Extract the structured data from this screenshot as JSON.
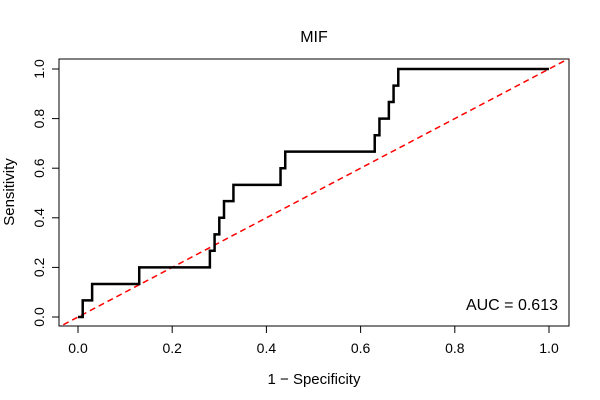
{
  "chart_data": {
    "type": "line",
    "title": "MIF",
    "xlabel": "1 − Specificity",
    "ylabel": "Sensitivity",
    "xlim": [
      0,
      1
    ],
    "ylim": [
      0,
      1
    ],
    "xticks": [
      "0.0",
      "0.2",
      "0.4",
      "0.6",
      "0.8",
      "1.0"
    ],
    "yticks": [
      "0.0",
      "0.2",
      "0.4",
      "0.6",
      "0.8",
      "1.0"
    ],
    "annotation": "AUC = 0.613",
    "grid": false,
    "legend": "none",
    "series": [
      {
        "color": "#000000",
        "style": "solid",
        "x": [
          0.0,
          0.01,
          0.01,
          0.03,
          0.03,
          0.13,
          0.13,
          0.28,
          0.28,
          0.29,
          0.29,
          0.3,
          0.3,
          0.31,
          0.31,
          0.33,
          0.33,
          0.43,
          0.43,
          0.44,
          0.44,
          0.63,
          0.63,
          0.64,
          0.64,
          0.66,
          0.66,
          0.67,
          0.67,
          0.68,
          0.68,
          1.0
        ],
        "y": [
          0.0,
          0.0,
          0.067,
          0.067,
          0.133,
          0.133,
          0.2,
          0.2,
          0.267,
          0.267,
          0.333,
          0.333,
          0.4,
          0.4,
          0.467,
          0.467,
          0.533,
          0.533,
          0.6,
          0.6,
          0.667,
          0.667,
          0.733,
          0.733,
          0.8,
          0.8,
          0.867,
          0.867,
          0.933,
          0.933,
          1.0,
          1.0
        ]
      },
      {
        "color": "#ff0000",
        "style": "dashed",
        "x": [
          0,
          1
        ],
        "y": [
          0,
          1
        ]
      }
    ]
  }
}
